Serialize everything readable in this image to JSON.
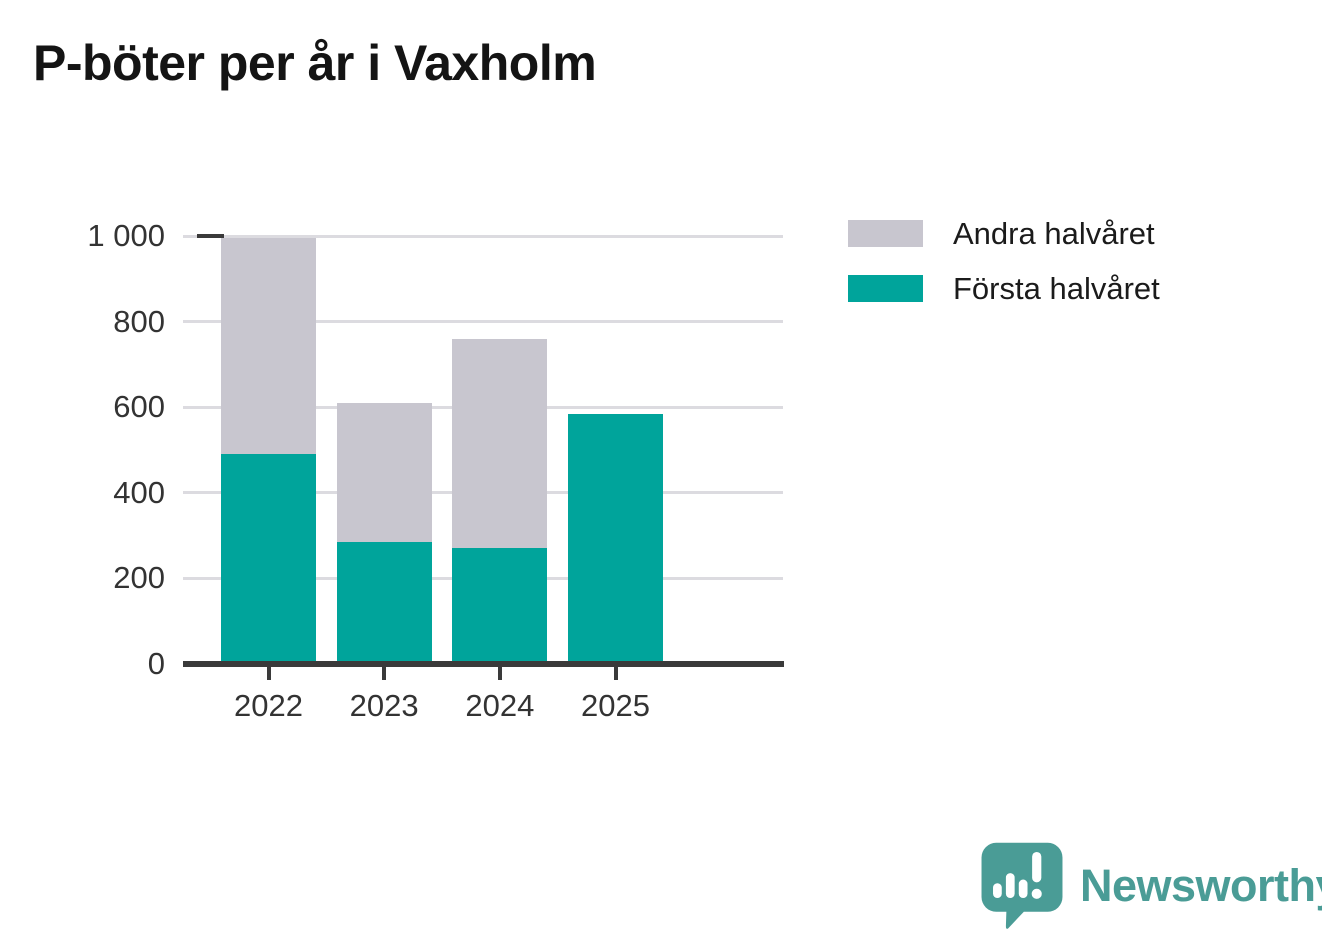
{
  "title": "P-böter per år i Vaxholm",
  "legend": {
    "items": [
      {
        "label": "Andra halvåret",
        "color": "#c8c6cf"
      },
      {
        "label": "Första halvåret",
        "color": "#00a49b"
      }
    ]
  },
  "chart_data": {
    "type": "bar",
    "stacked": true,
    "title": "P-böter per år i Vaxholm",
    "categories": [
      "2022",
      "2023",
      "2024",
      "2025"
    ],
    "series": [
      {
        "name": "Första halvåret",
        "color": "#00a49b",
        "values": [
          490,
          285,
          270,
          585
        ]
      },
      {
        "name": "Andra halvåret",
        "color": "#c8c6cf",
        "values": [
          505,
          325,
          490,
          0
        ]
      }
    ],
    "totals": [
      995,
      610,
      760,
      585
    ],
    "xlabel": "",
    "ylabel": "",
    "ylim": [
      0,
      1000
    ],
    "yticks": [
      0,
      200,
      400,
      600,
      800,
      1000
    ],
    "ytick_labels": [
      "0",
      "200",
      "400",
      "600",
      "800",
      "1 000"
    ],
    "grid": true,
    "legend_position": "top-right"
  },
  "branding": {
    "logo_text": "Newsworthy",
    "logo_color": "#4a9c96"
  }
}
